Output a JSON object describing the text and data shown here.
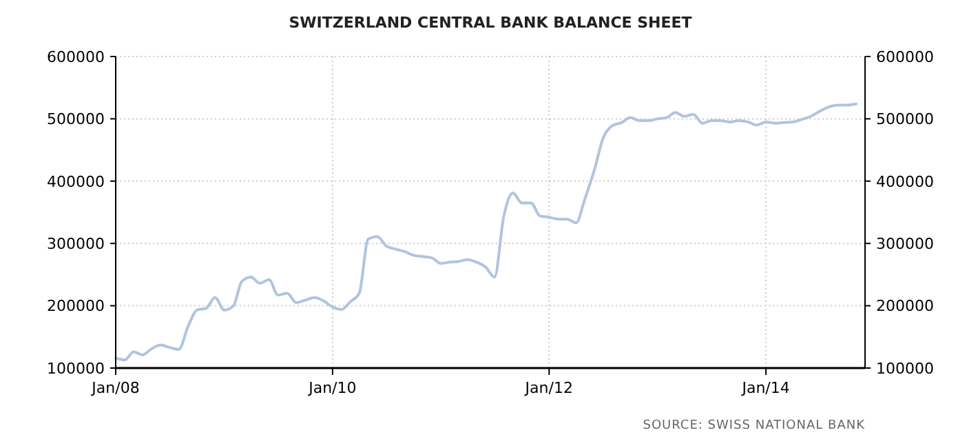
{
  "chart_data": {
    "type": "line",
    "title": "SWITZERLAND CENTRAL BANK BALANCE SHEET",
    "x": [
      "2008-01",
      "2008-02",
      "2008-03",
      "2008-04",
      "2008-05",
      "2008-06",
      "2008-07",
      "2008-08",
      "2008-09",
      "2008-10",
      "2008-11",
      "2008-12",
      "2009-01",
      "2009-02",
      "2009-03",
      "2009-04",
      "2009-05",
      "2009-06",
      "2009-07",
      "2009-08",
      "2009-09",
      "2009-10",
      "2009-11",
      "2009-12",
      "2010-01",
      "2010-02",
      "2010-03",
      "2010-04",
      "2010-05",
      "2010-06",
      "2010-07",
      "2010-08",
      "2010-09",
      "2010-10",
      "2010-11",
      "2010-12",
      "2011-01",
      "2011-02",
      "2011-03",
      "2011-04",
      "2011-05",
      "2011-06",
      "2011-07",
      "2011-08",
      "2011-09",
      "2011-10",
      "2011-11",
      "2011-12",
      "2012-01",
      "2012-02",
      "2012-03",
      "2012-04",
      "2012-05",
      "2012-06",
      "2012-07",
      "2012-08",
      "2012-09",
      "2012-10",
      "2012-11",
      "2012-12",
      "2013-01",
      "2013-02",
      "2013-03",
      "2013-04",
      "2013-05",
      "2013-06",
      "2013-07",
      "2013-08",
      "2013-09",
      "2013-10",
      "2013-11",
      "2013-12",
      "2014-01",
      "2014-02",
      "2014-03",
      "2014-04",
      "2014-05",
      "2014-06",
      "2014-07",
      "2014-08",
      "2014-09",
      "2014-10",
      "2014-11"
    ],
    "series": [
      {
        "color": "#b0c4de",
        "values": [
          116000,
          113000,
          126000,
          121000,
          131000,
          137000,
          133000,
          130000,
          167000,
          193000,
          196000,
          213000,
          193000,
          200000,
          239000,
          246000,
          236000,
          242000,
          217000,
          220000,
          205000,
          209000,
          213000,
          208000,
          198000,
          194000,
          206000,
          220000,
          307000,
          311000,
          296000,
          291000,
          287000,
          281000,
          279000,
          277000,
          268000,
          270000,
          271000,
          274000,
          270000,
          262000,
          246000,
          343000,
          381000,
          365000,
          365000,
          344000,
          342000,
          339000,
          339000,
          333000,
          372000,
          417000,
          469000,
          489000,
          494000,
          502000,
          497000,
          497000,
          500000,
          502000,
          510000,
          504000,
          507000,
          493000,
          497000,
          497000,
          495000,
          497000,
          495000,
          490000,
          495000,
          493000,
          494000,
          495000,
          499000,
          504000,
          512000,
          519000,
          522000,
          522000,
          524000
        ]
      }
    ],
    "xlim": [
      "2008-01",
      "2014-12"
    ],
    "xticks": [
      {
        "value": "2008-01",
        "label": "Jan/08"
      },
      {
        "value": "2010-01",
        "label": "Jan/10"
      },
      {
        "value": "2012-01",
        "label": "Jan/12"
      },
      {
        "value": "2014-01",
        "label": "Jan/14"
      }
    ],
    "ylim": [
      100000,
      600000
    ],
    "yticks": [
      100000,
      200000,
      300000,
      400000,
      500000,
      600000
    ],
    "y2lim": [
      100000,
      600000
    ],
    "y2ticks": [
      100000,
      200000,
      300000,
      400000,
      500000,
      600000
    ],
    "grid": true,
    "marker": "none",
    "line_style": "solid",
    "annotations": [
      "SOURCE: SWISS NATIONAL BANK"
    ]
  }
}
